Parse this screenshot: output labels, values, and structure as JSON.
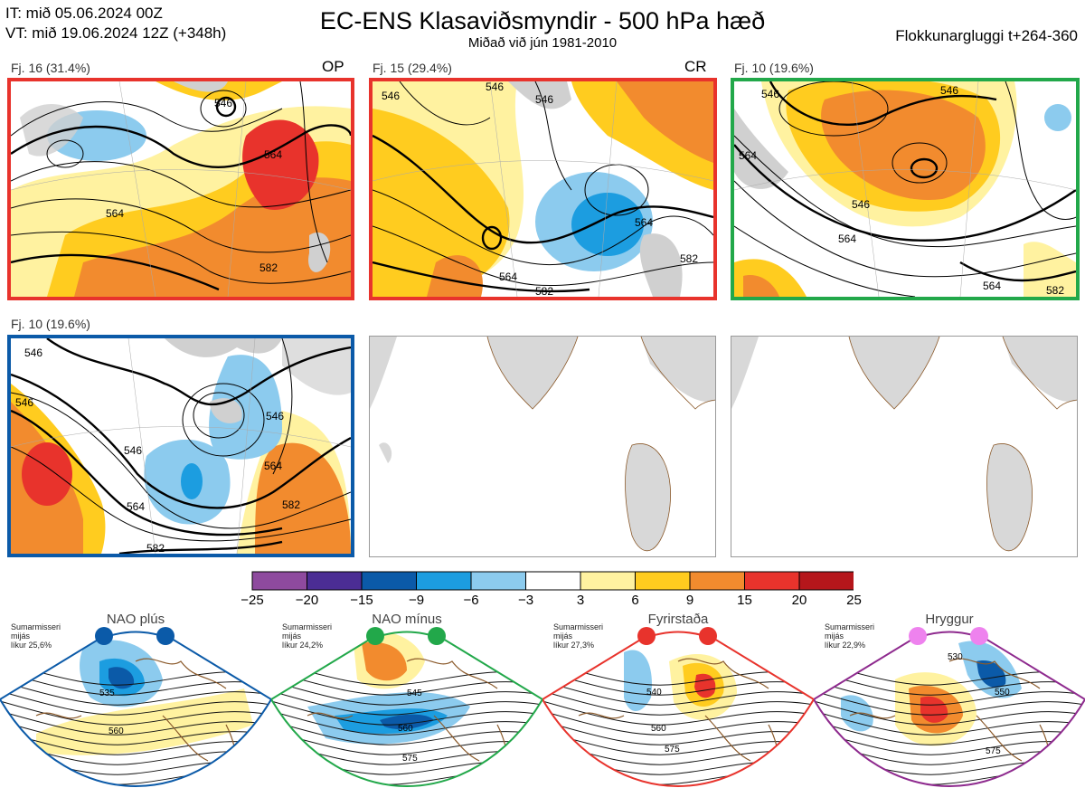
{
  "header": {
    "it_line": "IT: mið 05.06.2024 00Z",
    "vt_line": "VT: mið 19.06.2024 12Z  (+348h)",
    "title": "EC-ENS Klasaviðsmyndir - 500 hPa hæð",
    "subtitle": "Miðað við jún 1981-2010",
    "window": "Flokkunargluggi t+264-360"
  },
  "panels": [
    {
      "label": "Fj. 16 (31.4%)",
      "regime_code": "OP",
      "border": "#e8332c"
    },
    {
      "label": "Fj. 15 (29.4%)",
      "regime_code": "CR",
      "border": "#e8332c"
    },
    {
      "label": "Fj. 10 (19.6%)",
      "regime_code": "",
      "border": "#22a84a"
    },
    {
      "label": "Fj. 10 (19.6%)",
      "regime_code": "",
      "border": "#0b5aa8"
    }
  ],
  "contour_labels": {
    "p1": [
      "546",
      "564",
      "564",
      "582"
    ],
    "p2": [
      "546",
      "546",
      "546",
      "564",
      "564",
      "582",
      "582"
    ],
    "p3": [
      "546",
      "546",
      "546",
      "564",
      "564",
      "564",
      "582"
    ],
    "p4": [
      "546",
      "546",
      "546",
      "546",
      "564",
      "564",
      "582",
      "582"
    ]
  },
  "colorbar": {
    "ticks": [
      "−25",
      "−20",
      "−15",
      "−9",
      "−6",
      "−3",
      "3",
      "6",
      "9",
      "15",
      "20",
      "25"
    ],
    "colors": [
      "#8e4a9e",
      "#4b2d94",
      "#0b5aa8",
      "#1c9de0",
      "#8ccbee",
      "#ffffff",
      "#fff2a0",
      "#ffcc1f",
      "#f28b2e",
      "#e8332c",
      "#b5161b"
    ]
  },
  "regimes": [
    {
      "name": "NAO plús",
      "color": "#0b5aa8",
      "note1": "Sumarmisseri",
      "note2": "mijás",
      "note3": "líkur 25,6%",
      "labels": [
        "535",
        "560"
      ]
    },
    {
      "name": "NAO mínus",
      "color": "#22a84a",
      "note1": "Sumarmisseri",
      "note2": "mijás",
      "note3": "líkur 24,2%",
      "labels": [
        "545",
        "560",
        "575"
      ]
    },
    {
      "name": "Fyrirstaða",
      "color": "#e8332c",
      "note1": "Sumarmisseri",
      "note2": "mijás",
      "note3": "líkur 27,3%",
      "labels": [
        "540",
        "560",
        "575"
      ]
    },
    {
      "name": "Hryggur",
      "color": "#8e2a8e",
      "note1": "Sumarmisseri",
      "note2": "mijás",
      "note3": "líkur 22,9%",
      "labels": [
        "530",
        "550",
        "575"
      ]
    }
  ]
}
